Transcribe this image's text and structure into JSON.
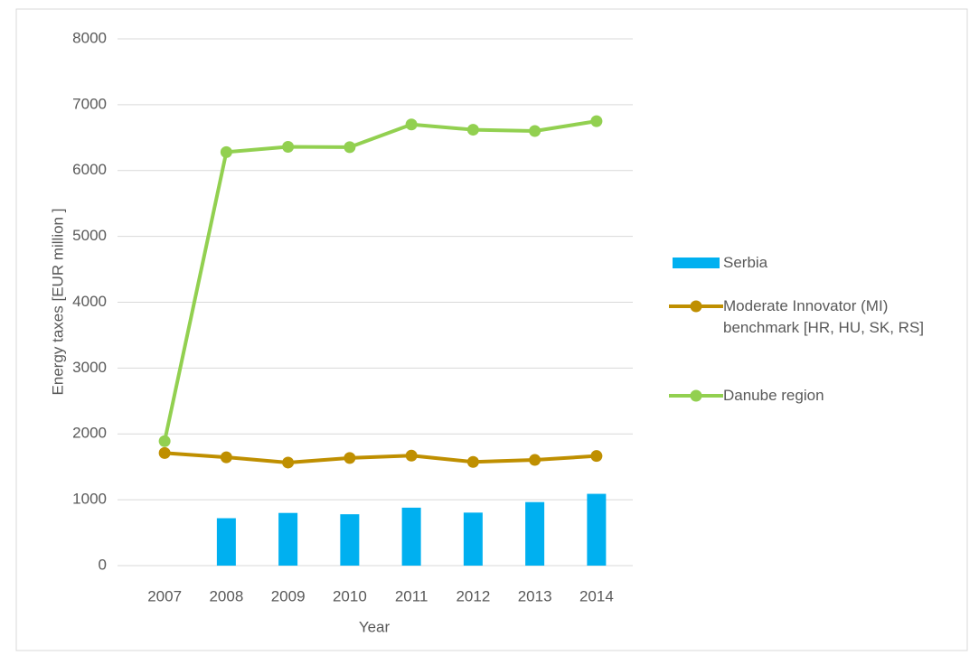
{
  "chart_data": {
    "type": "bar",
    "x_label": "Year",
    "y_label": "Energy taxes  [EUR million ]",
    "categories": [
      "2007",
      "2008",
      "2009",
      "2010",
      "2011",
      "2012",
      "2013",
      "2014"
    ],
    "series": [
      {
        "name": "Serbia",
        "type": "bar",
        "color": "#00b0f0",
        "values": [
          null,
          720,
          800,
          780,
          880,
          805,
          965,
          1090
        ]
      },
      {
        "name": "Moderate Innovator (MI) benchmark [HR, HU, SK, RS]",
        "type": "line",
        "color": "#bf8f00",
        "values": [
          1710,
          1645,
          1565,
          1635,
          1670,
          1575,
          1605,
          1665
        ]
      },
      {
        "name": "Danube region",
        "type": "line",
        "color": "#92d050",
        "values": [
          1890,
          6280,
          6360,
          6355,
          6700,
          6620,
          6600,
          6750
        ]
      }
    ],
    "ylim": [
      0,
      8000
    ],
    "yticks": [
      0,
      1000,
      2000,
      3000,
      4000,
      5000,
      6000,
      7000,
      8000
    ],
    "grid": true,
    "legend": "right"
  }
}
